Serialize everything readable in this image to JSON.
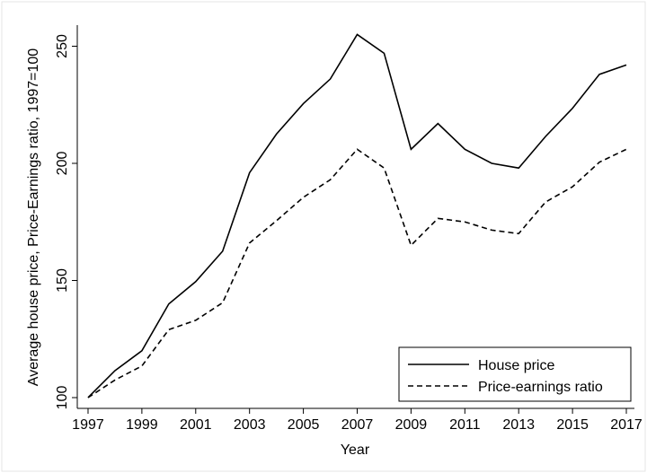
{
  "chart_data": {
    "type": "line",
    "x_label": "Year",
    "y_label": "Average house price, Price-Earnings ratio, 1997=100",
    "x": [
      1997,
      1998,
      1999,
      2000,
      2001,
      2002,
      2003,
      2004,
      2005,
      2006,
      2007,
      2008,
      2009,
      2010,
      2011,
      2012,
      2013,
      2014,
      2015,
      2016,
      2017
    ],
    "series": [
      {
        "name": "House price",
        "color": "#000000",
        "style": "solid",
        "values": [
          100,
          111.5,
          120,
          140,
          149.5,
          162.5,
          196,
          212.5,
          225.5,
          236,
          255,
          247,
          206,
          217,
          206,
          200,
          198,
          211.5,
          223.5,
          238,
          242
        ]
      },
      {
        "name": "Price-earnings ratio",
        "color": "#000000",
        "style": "dashed",
        "values": [
          100,
          107.5,
          113.5,
          129,
          133,
          140.5,
          166,
          175.5,
          185.5,
          193,
          206,
          198,
          165,
          176.5,
          175,
          171.5,
          170,
          183.5,
          190,
          200.5,
          206
        ]
      }
    ],
    "xlim": [
      1996.6,
      2017.3
    ],
    "ylim": [
      95.4,
      259
    ],
    "xticks": [
      1997,
      1999,
      2001,
      2003,
      2005,
      2007,
      2009,
      2011,
      2013,
      2015,
      2017
    ],
    "yticks": [
      100,
      150,
      200,
      250
    ],
    "grid": false,
    "legend": "bottom-right"
  }
}
